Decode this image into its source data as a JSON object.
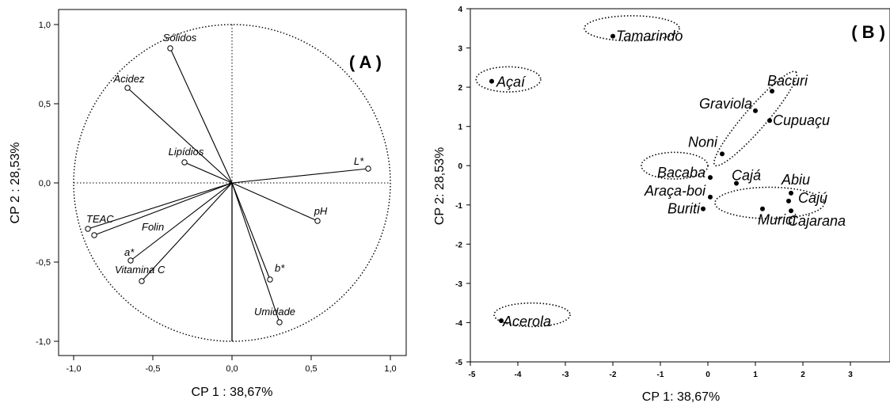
{
  "chart_data": [
    {
      "type": "scatter",
      "panel_label": "( A )",
      "xlabel": "CP 1 : 38,67%",
      "ylabel": "CP 2 : 28,53%",
      "xlim": [
        -1.1,
        1.1
      ],
      "ylim": [
        -1.1,
        1.1
      ],
      "x_ticks": [
        "-1,0",
        "-0,5",
        "0,0",
        "0,5",
        "1,0"
      ],
      "y_ticks": [
        "1,0",
        "0,5",
        "0,0",
        "-0,5",
        "-1,0"
      ],
      "x_tick_values": [
        -1.0,
        -0.5,
        0.0,
        0.5,
        1.0
      ],
      "y_tick_values": [
        1.0,
        0.5,
        0.0,
        -0.5,
        -1.0
      ],
      "unit_circle": true,
      "loadings": [
        {
          "name": "Sólidos",
          "x": -0.39,
          "y": 0.85
        },
        {
          "name": "Acidez",
          "x": -0.66,
          "y": 0.6
        },
        {
          "name": "Lipídios",
          "x": -0.3,
          "y": 0.13
        },
        {
          "name": "L*",
          "x": 0.86,
          "y": 0.09
        },
        {
          "name": "pH",
          "x": 0.54,
          "y": -0.24
        },
        {
          "name": "TEAC",
          "x": -0.91,
          "y": -0.29
        },
        {
          "name": "Folin",
          "x": -0.87,
          "y": -0.33
        },
        {
          "name": "a*",
          "x": -0.64,
          "y": -0.49
        },
        {
          "name": "Vitamina C",
          "x": -0.57,
          "y": -0.62
        },
        {
          "name": "b*",
          "x": 0.24,
          "y": -0.61
        },
        {
          "name": "Umidade",
          "x": 0.3,
          "y": -0.88
        }
      ]
    },
    {
      "type": "scatter",
      "panel_label": "( B )",
      "xlabel": "CP 1: 38,67%",
      "ylabel": "CP 2: 28,53%",
      "xlim": [
        -5,
        4
      ],
      "ylim": [
        -5,
        4
      ],
      "x_ticks": [
        "-5",
        "-4",
        "-3",
        "-2",
        "-1",
        "0",
        "1",
        "2",
        "3",
        "4"
      ],
      "y_ticks": [
        "4",
        "3",
        "2",
        "1",
        "0",
        "-1",
        "-2",
        "-3",
        "-4",
        "-5"
      ],
      "points": [
        {
          "name": "Tamarindo",
          "x": -2.0,
          "y": 3.3
        },
        {
          "name": "Açaí",
          "x": -4.55,
          "y": 2.15
        },
        {
          "name": "Bacuri",
          "x": 1.35,
          "y": 1.9
        },
        {
          "name": "Graviola",
          "x": 1.0,
          "y": 1.4
        },
        {
          "name": "Cupuaçu",
          "x": 1.3,
          "y": 1.15
        },
        {
          "name": "Noni",
          "x": 0.3,
          "y": 0.3
        },
        {
          "name": "Bacaba",
          "x": 0.05,
          "y": -0.3
        },
        {
          "name": "Cajá",
          "x": 0.6,
          "y": -0.45
        },
        {
          "name": "Abiu",
          "x": 1.75,
          "y": -0.7
        },
        {
          "name": "Araça-boi",
          "x": 0.05,
          "y": -0.8
        },
        {
          "name": "Cajú",
          "x": 1.7,
          "y": -0.9
        },
        {
          "name": "Buriti",
          "x": -0.1,
          "y": -1.1
        },
        {
          "name": "Murici",
          "x": 1.15,
          "y": -1.1
        },
        {
          "name": "Cajarana",
          "x": 1.75,
          "y": -1.15
        },
        {
          "name": "Acerola",
          "x": -4.35,
          "y": -3.95
        }
      ],
      "groups": [
        {
          "members": [
            "Tamarindo"
          ],
          "cx": -1.6,
          "cy": 3.5,
          "rx": 1.0,
          "ry": 0.32,
          "angle": 0
        },
        {
          "members": [
            "Açaí"
          ],
          "cx": -4.2,
          "cy": 2.2,
          "rx": 0.68,
          "ry": 0.32,
          "angle": 0
        },
        {
          "members": [
            "Bacuri",
            "Cupuaçu",
            "Noni"
          ],
          "cx": 1.0,
          "cy": 1.2,
          "rx": 1.3,
          "ry": 0.28,
          "angle": -49
        },
        {
          "members": [
            "Bacaba"
          ],
          "cx": -0.7,
          "cy": 0.0,
          "rx": 0.7,
          "ry": 0.34,
          "angle": 0
        },
        {
          "members": [
            "Cajá",
            "Abiu",
            "Cajú",
            "Murici",
            "Cajarana"
          ],
          "cx": 1.3,
          "cy": -0.95,
          "rx": 1.15,
          "ry": 0.4,
          "angle": 0
        },
        {
          "members": [
            "Acerola"
          ],
          "cx": -3.7,
          "cy": -3.8,
          "rx": 0.8,
          "ry": 0.3,
          "angle": 0
        }
      ]
    }
  ]
}
